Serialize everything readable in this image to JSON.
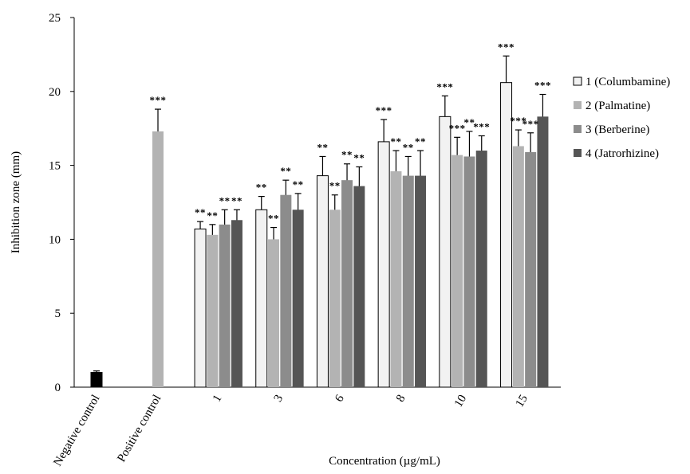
{
  "chart_data": {
    "type": "bar",
    "title": "",
    "xlabel": "Concentration (µg/mL)",
    "ylabel": "Inhibition zone  (mm)",
    "ylim": [
      0,
      25
    ],
    "yticks": [
      0,
      5,
      10,
      15,
      20,
      25
    ],
    "grid": false,
    "legend_position": "right",
    "colors": {
      "negative": "#000000",
      "positive": "#b3b3b3",
      "series": [
        "#f2f2f2",
        "#b3b3b3",
        "#8c8c8c",
        "#555555"
      ]
    },
    "controls": [
      {
        "label": "Negative control",
        "value": 1.0,
        "error": 0.1,
        "sig": ""
      },
      {
        "label": "Positive control",
        "value": 17.3,
        "error": 1.5,
        "sig": "***"
      }
    ],
    "categories": [
      "1",
      "3",
      "6",
      "8",
      "10",
      "15"
    ],
    "series": [
      {
        "name": "1 (Columbamine)",
        "values": [
          10.7,
          12.0,
          14.3,
          16.6,
          18.3,
          20.6
        ],
        "errors": [
          0.5,
          0.9,
          1.3,
          1.5,
          1.4,
          1.8
        ],
        "sig": [
          "**",
          "**",
          "**",
          "***",
          "***",
          "***"
        ]
      },
      {
        "name": "2 (Palmatine)",
        "values": [
          10.3,
          10.0,
          12.0,
          14.6,
          15.7,
          16.3
        ],
        "errors": [
          0.7,
          0.8,
          1.0,
          1.4,
          1.2,
          1.1
        ],
        "sig": [
          "**",
          "**",
          "**",
          "**",
          "***",
          "***"
        ]
      },
      {
        "name": "3 (Berberine)",
        "values": [
          11.0,
          13.0,
          14.0,
          14.3,
          15.6,
          15.9
        ],
        "errors": [
          1.0,
          1.0,
          1.1,
          1.3,
          1.7,
          1.3
        ],
        "sig": [
          "**",
          "**",
          "**",
          "**",
          "**",
          "***"
        ]
      },
      {
        "name": "4 (Jatrorhizine)",
        "values": [
          11.3,
          12.0,
          13.6,
          14.3,
          16.0,
          18.3
        ],
        "errors": [
          0.7,
          1.1,
          1.3,
          1.7,
          1.0,
          1.5
        ],
        "sig": [
          "**",
          "**",
          "**",
          "**",
          "***",
          "***"
        ]
      }
    ]
  }
}
